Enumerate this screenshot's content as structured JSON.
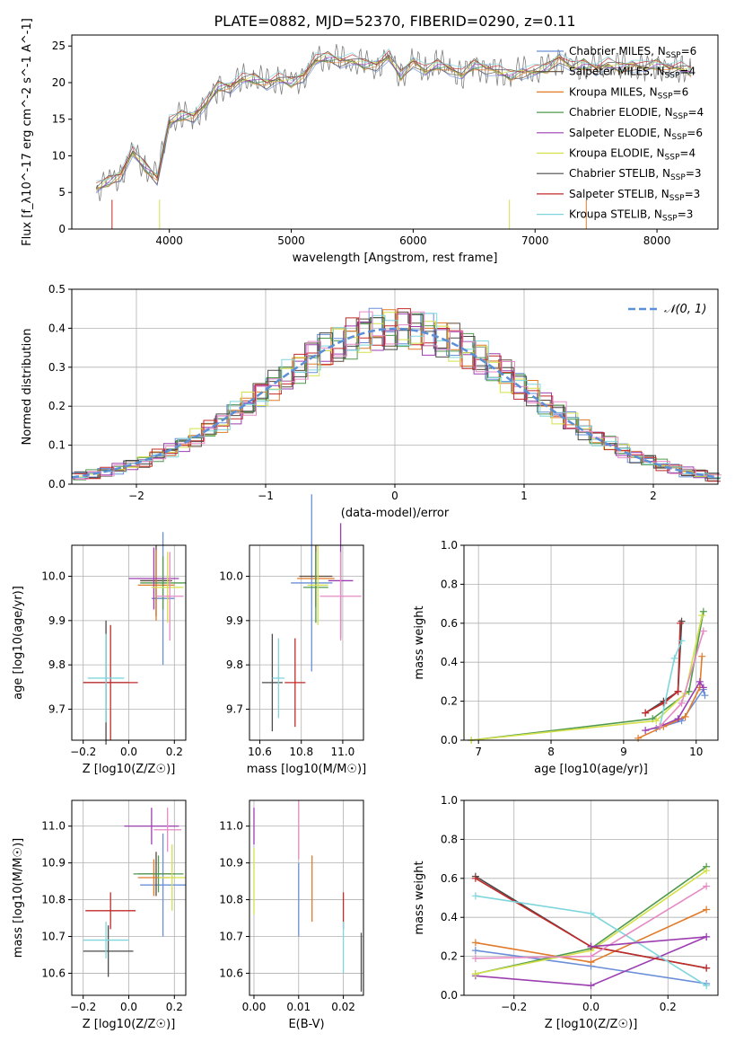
{
  "figure_title": "PLATE=0882, MJD=52370, FIBERID=0290, z=0.11",
  "colors": {
    "Chabrier MILES": "#6a8fd8",
    "Salpeter MILES": "#5d4a3a",
    "Kroupa MILES": "#e07b2a",
    "Chabrier ELODIE": "#4f9a4f",
    "Salpeter ELODIE": "#9b3fb0",
    "Kroupa ELODIE": "#d4e04a",
    "Chabrier STELIB": "#4a4a4a",
    "Salpeter STELIB": "#c22a2a",
    "Kroupa STELIB": "#7ed6dc",
    "pink": "#e58ac4",
    "gaussian": "#5b8fd6"
  },
  "chart_data": [
    {
      "id": "spectrum",
      "type": "line",
      "title": "PLATE=0882, MJD=52370, FIBERID=0290, z=0.11",
      "xlabel": "wavelength [Angstrom, rest frame]",
      "ylabel": "Flux [f_λ10^-17 erg cm^-2 s^-1 A^-1]",
      "xlim": [
        3200,
        8500
      ],
      "ylim": [
        0,
        26.5
      ],
      "xticks": [
        4000,
        5000,
        6000,
        7000,
        8000
      ],
      "yticks": [
        0,
        5,
        10,
        15,
        20,
        25
      ],
      "legend_position": "right",
      "data_color": "#7f7f7f",
      "data_spectrum": {
        "x": [
          3400,
          3500,
          3600,
          3700,
          3800,
          3900,
          4000,
          4100,
          4200,
          4300,
          4400,
          4500,
          4600,
          4700,
          4800,
          4900,
          5000,
          5100,
          5200,
          5300,
          5400,
          5500,
          5600,
          5700,
          5800,
          5900,
          6000,
          6100,
          6200,
          6300,
          6400,
          6500,
          6600,
          6700,
          6800,
          6900,
          7000,
          7100,
          7200,
          7300,
          7400,
          7500,
          7600,
          7700,
          7800,
          7900,
          8000,
          8100,
          8200,
          8280
        ],
        "y": [
          5.5,
          6.5,
          7.5,
          10.5,
          8.5,
          7.0,
          14.5,
          15.5,
          15.5,
          17.0,
          19.5,
          19.5,
          20.5,
          20.5,
          20.0,
          20.5,
          20.0,
          21.0,
          23.0,
          23.5,
          23.0,
          23.0,
          22.5,
          22.5,
          23.5,
          21.0,
          23.0,
          21.5,
          22.5,
          22.0,
          21.0,
          22.5,
          22.0,
          21.5,
          21.0,
          21.5,
          21.5,
          22.0,
          23.5,
          22.0,
          22.5,
          22.0,
          22.5,
          22.0,
          22.5,
          22.0,
          22.5,
          22.0,
          22.0,
          21.5
        ]
      },
      "series": [
        {
          "name": "Chabrier MILES, N_SSP=6"
        },
        {
          "name": "Salpeter MILES, N_SSP=4"
        },
        {
          "name": "Kroupa MILES, N_SSP=6"
        },
        {
          "name": "Chabrier ELODIE, N_SSP=4"
        },
        {
          "name": "Salpeter ELODIE, N_SSP=6"
        },
        {
          "name": "Kroupa ELODIE, N_SSP=4"
        },
        {
          "name": "Chabrier STELIB, N_SSP=3"
        },
        {
          "name": "Salpeter STELIB, N_SSP=3"
        },
        {
          "name": "Kroupa STELIB, N_SSP=3"
        }
      ]
    },
    {
      "id": "residuals",
      "type": "bar",
      "xlabel": "(data-model)/error",
      "ylabel": "Normed distribution",
      "xlim": [
        -2.5,
        2.5
      ],
      "ylim": [
        0,
        0.5
      ],
      "xticks": [
        -2,
        -1,
        0,
        1,
        2
      ],
      "yticks": [
        0.0,
        0.1,
        0.2,
        0.3,
        0.4,
        0.5
      ],
      "grid": true,
      "legend": [
        "N(0,1)"
      ],
      "legend_position": "top-right"
    },
    {
      "id": "age_vs_Z",
      "type": "scatter",
      "xlabel": "Z [log10(Z/Z☉)]",
      "ylabel": "age [log10(age/yr)]",
      "xlim": [
        -0.25,
        0.25
      ],
      "ylim": [
        9.63,
        10.07
      ],
      "xticks": [
        -0.2,
        0.0,
        0.2
      ],
      "yticks": [
        9.7,
        9.8,
        9.9,
        10.0
      ],
      "grid": true,
      "points": [
        {
          "series": "Chabrier MILES",
          "x": 0.15,
          "y": 9.95,
          "xerr": 0.05,
          "yerr": 0.15
        },
        {
          "series": "Salpeter MILES",
          "x": 0.12,
          "y": 9.99,
          "xerr": 0.07,
          "yerr": 0.08
        },
        {
          "series": "Kroupa MILES",
          "x": 0.12,
          "y": 9.98,
          "xerr": 0.08,
          "yerr": 0.08
        },
        {
          "series": "Chabrier ELODIE",
          "x": 0.15,
          "y": 9.985,
          "xerr": 0.1,
          "yerr": 0.06
        },
        {
          "series": "Salpeter ELODIE",
          "x": 0.11,
          "y": 9.995,
          "xerr": 0.11,
          "yerr": 0.07
        },
        {
          "series": "Kroupa ELODIE",
          "x": 0.17,
          "y": 9.975,
          "xerr": 0.07,
          "yerr": 0.08
        },
        {
          "series": "Chabrier STELIB",
          "x": -0.1,
          "y": 9.76,
          "xerr": 0.1,
          "yerr": 0.14
        },
        {
          "series": "Salpeter STELIB",
          "x": -0.08,
          "y": 9.76,
          "xerr": 0.12,
          "yerr": 0.13
        },
        {
          "series": "Kroupa STELIB",
          "x": -0.1,
          "y": 9.77,
          "xerr": 0.08,
          "yerr": 0.1
        },
        {
          "series": "pink",
          "x": 0.18,
          "y": 9.955,
          "xerr": 0.06,
          "yerr": 0.1
        }
      ]
    },
    {
      "id": "age_vs_mass",
      "type": "scatter",
      "xlabel": "mass [log10(M/M☉)]",
      "xlim": [
        10.55,
        11.1
      ],
      "ylim": [
        9.63,
        10.07
      ],
      "xticks": [
        10.6,
        10.8,
        11.0
      ],
      "yticks": [
        9.7,
        9.8,
        9.9,
        10.0
      ],
      "grid": true,
      "points": [
        {
          "series": "Chabrier MILES",
          "x": 10.85,
          "y": 9.985,
          "xerr": 0.1,
          "yerr": 0.2
        },
        {
          "series": "Salpeter MILES",
          "x": 10.87,
          "y": 10.0,
          "xerr": 0.08,
          "yerr": 0.07
        },
        {
          "series": "Kroupa MILES",
          "x": 10.87,
          "y": 9.995,
          "xerr": 0.09,
          "yerr": 0.06
        },
        {
          "series": "Chabrier ELODIE",
          "x": 10.87,
          "y": 9.975,
          "xerr": 0.06,
          "yerr": 0.08
        },
        {
          "series": "Salpeter ELODIE",
          "x": 10.99,
          "y": 9.99,
          "xerr": 0.06,
          "yerr": 0.13
        },
        {
          "series": "Kroupa ELODIE",
          "x": 10.88,
          "y": 9.98,
          "xerr": 0.05,
          "yerr": 0.09
        },
        {
          "series": "Chabrier STELIB",
          "x": 10.66,
          "y": 9.76,
          "xerr": 0.05,
          "yerr": 0.11
        },
        {
          "series": "Salpeter STELIB",
          "x": 10.77,
          "y": 9.76,
          "xerr": 0.05,
          "yerr": 0.1
        },
        {
          "series": "Kroupa STELIB",
          "x": 10.69,
          "y": 9.77,
          "xerr": 0.03,
          "yerr": 0.09
        },
        {
          "series": "pink",
          "x": 10.99,
          "y": 9.955,
          "xerr": 0.1,
          "yerr": 0.1
        }
      ]
    },
    {
      "id": "weight_vs_age",
      "type": "line",
      "xlabel": "age [log10(age/yr)]",
      "ylabel": "mass weight",
      "xlim": [
        6.8,
        10.3
      ],
      "ylim": [
        0,
        1
      ],
      "xticks": [
        7,
        8,
        9,
        10
      ],
      "yticks": [
        0.0,
        0.2,
        0.4,
        0.6,
        0.8,
        1.0
      ],
      "grid": true,
      "lines": [
        {
          "series": "Chabrier MILES",
          "x": [
            9.45,
            9.8,
            10.1,
            10.12
          ],
          "y": [
            0.06,
            0.1,
            0.26,
            0.23
          ]
        },
        {
          "series": "Kroupa MILES",
          "x": [
            9.2,
            9.55,
            9.85,
            10.05,
            10.08
          ],
          "y": [
            0.01,
            0.07,
            0.12,
            0.27,
            0.43
          ]
        },
        {
          "series": "Salpeter ELODIE",
          "x": [
            9.3,
            9.5,
            9.75,
            10.05,
            10.1
          ],
          "y": [
            0.05,
            0.07,
            0.11,
            0.3,
            0.27
          ]
        },
        {
          "series": "Chabrier ELODIE",
          "x": [
            6.9,
            9.4,
            9.9,
            10.1
          ],
          "y": [
            0.0,
            0.11,
            0.25,
            0.66
          ]
        },
        {
          "series": "Kroupa ELODIE",
          "x": [
            6.9,
            9.45,
            9.85,
            10.08
          ],
          "y": [
            0.0,
            0.1,
            0.24,
            0.64
          ]
        },
        {
          "series": "Chabrier STELIB",
          "x": [
            9.3,
            9.55,
            9.75,
            9.8
          ],
          "y": [
            0.14,
            0.2,
            0.25,
            0.61
          ]
        },
        {
          "series": "Salpeter STELIB",
          "x": [
            9.3,
            9.55,
            9.75,
            9.78
          ],
          "y": [
            0.14,
            0.19,
            0.25,
            0.6
          ]
        },
        {
          "series": "Kroupa STELIB",
          "x": [
            9.5,
            9.7,
            9.8
          ],
          "y": [
            0.07,
            0.42,
            0.51
          ]
        },
        {
          "series": "pink",
          "x": [
            9.5,
            9.8,
            10.1
          ],
          "y": [
            0.07,
            0.19,
            0.56
          ]
        }
      ]
    },
    {
      "id": "mass_vs_Z",
      "type": "scatter",
      "xlabel": "Z [log10(Z/Z☉)]",
      "ylabel": "mass [log10(M/M☉)]",
      "xlim": [
        -0.25,
        0.25
      ],
      "ylim": [
        10.54,
        11.07
      ],
      "xticks": [
        -0.2,
        0.0,
        0.2
      ],
      "yticks": [
        10.6,
        10.7,
        10.8,
        10.9,
        11.0
      ],
      "grid": true,
      "points": [
        {
          "series": "Chabrier MILES",
          "x": 0.15,
          "y": 10.84,
          "xerr": 0.1,
          "yerr": 0.14
        },
        {
          "series": "Salpeter MILES",
          "x": 0.12,
          "y": 10.87,
          "xerr": 0.08,
          "yerr": 0.06
        },
        {
          "series": "Kroupa MILES",
          "x": 0.11,
          "y": 10.86,
          "xerr": 0.07,
          "yerr": 0.05
        },
        {
          "series": "Chabrier ELODIE",
          "x": 0.13,
          "y": 10.87,
          "xerr": 0.11,
          "yerr": 0.05
        },
        {
          "series": "Salpeter ELODIE",
          "x": 0.1,
          "y": 11.0,
          "xerr": 0.12,
          "yerr": 0.05
        },
        {
          "series": "Kroupa ELODIE",
          "x": 0.19,
          "y": 10.86,
          "xerr": 0.06,
          "yerr": 0.09
        },
        {
          "series": "Chabrier STELIB",
          "x": -0.09,
          "y": 10.66,
          "xerr": 0.11,
          "yerr": 0.07
        },
        {
          "series": "Salpeter STELIB",
          "x": -0.08,
          "y": 10.77,
          "xerr": 0.11,
          "yerr": 0.05
        },
        {
          "series": "Kroupa STELIB",
          "x": -0.1,
          "y": 10.69,
          "xerr": 0.1,
          "yerr": 0.05
        },
        {
          "series": "pink",
          "x": 0.17,
          "y": 10.99,
          "xerr": 0.06,
          "yerr": 0.06
        }
      ]
    },
    {
      "id": "mass_vs_ebv",
      "type": "scatter",
      "xlabel": "E(B-V)",
      "xlim": [
        -0.001,
        0.0245
      ],
      "ylim": [
        10.54,
        11.07
      ],
      "xticks": [
        0.0,
        0.01,
        0.02
      ],
      "yticks": [
        10.6,
        10.7,
        10.8,
        10.9,
        11.0
      ],
      "grid": true,
      "points": [
        {
          "series": "Chabrier MILES",
          "x": 0.01,
          "y": 10.8,
          "yerr": 0.1
        },
        {
          "series": "Kroupa MILES",
          "x": 0.013,
          "y": 10.83,
          "yerr": 0.09
        },
        {
          "series": "Salpeter ELODIE",
          "x": 0.0,
          "y": 11.0,
          "yerr": 0.05
        },
        {
          "series": "Kroupa ELODIE",
          "x": 0.0,
          "y": 10.85,
          "yerr": 0.09
        },
        {
          "series": "Chabrier STELIB",
          "x": 0.024,
          "y": 10.63,
          "yerr": 0.08
        },
        {
          "series": "Salpeter STELIB",
          "x": 0.02,
          "y": 10.77,
          "yerr": 0.05
        },
        {
          "series": "Kroupa STELIB",
          "x": 0.02,
          "y": 10.67,
          "yerr": 0.07
        },
        {
          "series": "pink",
          "x": 0.01,
          "y": 10.99,
          "yerr": 0.08
        }
      ]
    },
    {
      "id": "weight_vs_Z",
      "type": "line",
      "xlabel": "Z [log10(Z/Z☉)]",
      "ylabel": "mass weight",
      "xlim": [
        -0.33,
        0.33
      ],
      "ylim": [
        0,
        1
      ],
      "xticks": [
        -0.2,
        0.0,
        0.2
      ],
      "yticks": [
        0.0,
        0.2,
        0.4,
        0.6,
        0.8,
        1.0
      ],
      "grid": true,
      "lines": [
        {
          "series": "Chabrier MILES",
          "x": [
            -0.3,
            0.0,
            0.3
          ],
          "y": [
            0.23,
            0.15,
            0.06
          ]
        },
        {
          "series": "Kroupa MILES",
          "x": [
            -0.3,
            0.0,
            0.3
          ],
          "y": [
            0.27,
            0.17,
            0.44
          ]
        },
        {
          "series": "Salpeter ELODIE",
          "x": [
            -0.3,
            0.0,
            0.3
          ],
          "y": [
            0.1,
            0.05,
            0.3
          ]
        },
        {
          "series": "Chabrier ELODIE",
          "x": [
            -0.3,
            0.0,
            0.3
          ],
          "y": [
            0.11,
            0.24,
            0.66
          ]
        },
        {
          "series": "Kroupa ELODIE",
          "x": [
            -0.3,
            0.0,
            0.3
          ],
          "y": [
            0.11,
            0.23,
            0.64
          ]
        },
        {
          "series": "Chabrier STELIB",
          "x": [
            -0.3,
            0.0,
            0.3
          ],
          "y": [
            0.61,
            0.25,
            0.14
          ]
        },
        {
          "series": "Salpeter STELIB",
          "x": [
            -0.3,
            0.0,
            0.3
          ],
          "y": [
            0.6,
            0.25,
            0.14
          ]
        },
        {
          "series": "Kroupa STELIB",
          "x": [
            -0.3,
            0.0,
            0.3
          ],
          "y": [
            0.51,
            0.42,
            0.05
          ]
        },
        {
          "series": "pink",
          "x": [
            -0.3,
            0.0,
            0.3
          ],
          "y": [
            0.19,
            0.2,
            0.56
          ]
        },
        {
          "series": "Salpeter ELODIE",
          "x": [
            0.0,
            0.3
          ],
          "y": [
            0.25,
            0.3
          ]
        }
      ]
    }
  ]
}
